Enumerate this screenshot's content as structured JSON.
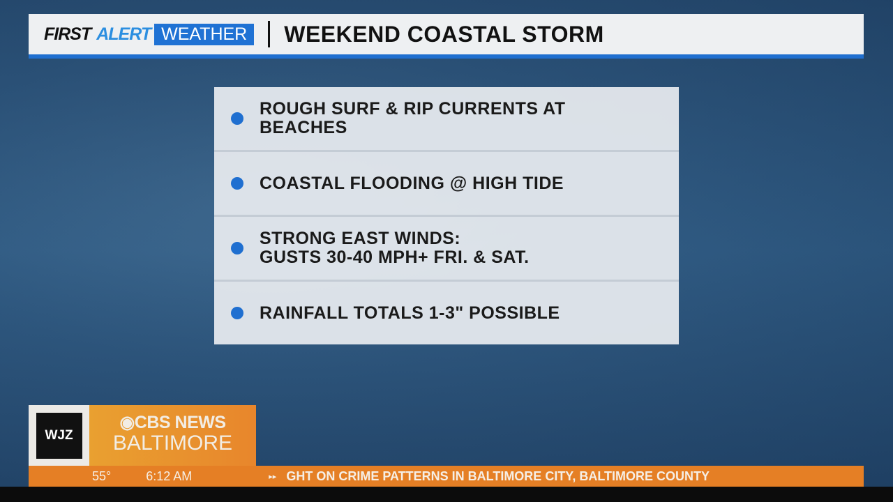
{
  "header": {
    "brand_first": "FIRST",
    "brand_alert": "ALERT",
    "brand_weather": "WEATHER",
    "title": "WEEKEND COASTAL STORM"
  },
  "bullets": [
    {
      "line1": "ROUGH SURF & RIP CURRENTS AT",
      "line2": "BEACHES"
    },
    {
      "line1": "COASTAL FLOODING @ HIGH TIDE",
      "line2": ""
    },
    {
      "line1": "STRONG EAST WINDS:",
      "line2": "GUSTS 30-40 MPH+ FRI. & SAT."
    },
    {
      "line1": "RAINFALL TOTALS 1-3\" POSSIBLE",
      "line2": ""
    }
  ],
  "station": {
    "call_sign": "WJZ",
    "network": "CBS NEWS",
    "city": "BALTIMORE"
  },
  "ticker": {
    "temperature": "55°",
    "time": "6:12 AM",
    "arrows": "▸▸",
    "headline": "GHT ON CRIME PATTERNS IN BALTIMORE CITY, BALTIMORE COUNTY"
  },
  "colors": {
    "accent": "#1f6fd0",
    "ticker": "#e57f25"
  }
}
